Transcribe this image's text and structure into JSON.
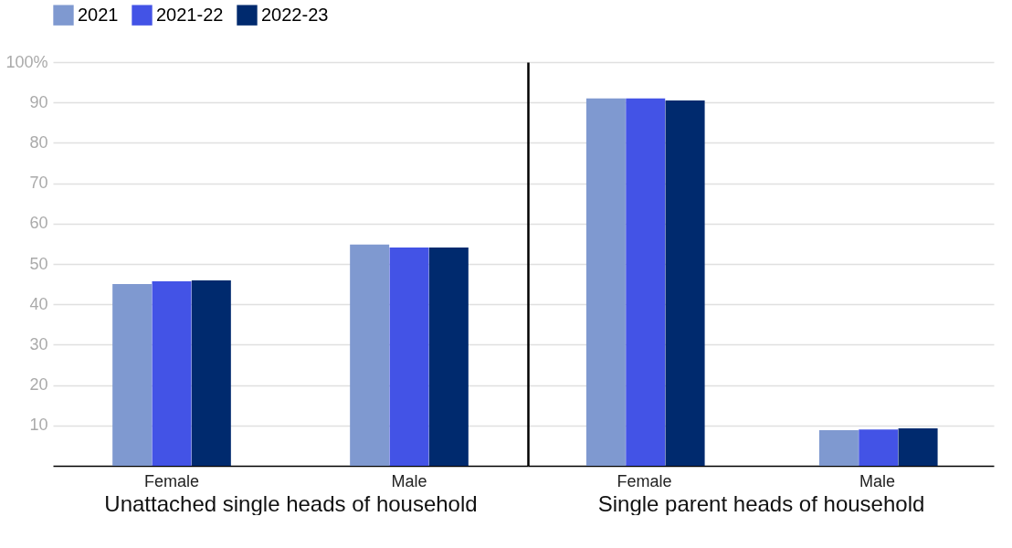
{
  "chart_data": [
    {
      "type": "bar",
      "xlabel": "Unattached single heads of household",
      "categories": [
        "Female",
        "Male"
      ],
      "series": [
        {
          "name": "2021",
          "color": "#7f99d0",
          "values": [
            45.0,
            54.8
          ]
        },
        {
          "name": "2021-22",
          "color": "#4353e6",
          "values": [
            45.7,
            54.1
          ]
        },
        {
          "name": "2022-23",
          "color": "#002a6e",
          "values": [
            45.9,
            54.1
          ]
        }
      ],
      "ylim": [
        0,
        100
      ],
      "yticks": [
        10,
        20,
        30,
        40,
        50,
        60,
        70,
        80,
        90,
        {
          "value": 100,
          "label": "100%"
        }
      ],
      "grid": "y",
      "legend": "top left"
    },
    {
      "type": "bar",
      "xlabel": "Single parent heads of household",
      "categories": [
        "Female",
        "Male"
      ],
      "series": [
        {
          "name": "2021",
          "color": "#7f99d0",
          "values": [
            91.0,
            8.8
          ]
        },
        {
          "name": "2021-22",
          "color": "#4353e6",
          "values": [
            91.0,
            9.0
          ]
        },
        {
          "name": "2022-23",
          "color": "#002a6e",
          "values": [
            90.5,
            9.3
          ]
        }
      ],
      "ylim": [
        0,
        100
      ],
      "yticks": [
        10,
        20,
        30,
        40,
        50,
        60,
        70,
        80,
        90,
        100
      ],
      "grid": "y",
      "tick_labels": "x",
      "legend": "top left"
    }
  ]
}
